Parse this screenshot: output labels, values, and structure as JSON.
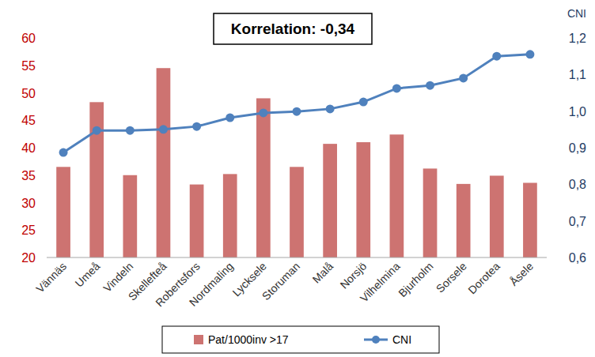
{
  "chart_data": {
    "type": "bar",
    "annotation": "Korrelation: -0,34",
    "y2label": "CNI",
    "categories": [
      "Vännäs",
      "Umeå",
      "Vindeln",
      "Skellefteå",
      "Robertsfors",
      "Nordmaling",
      "Lycksele",
      "Storuman",
      "Malå",
      "Norsjö",
      "Vilhelmina",
      "Bjurholm",
      "Sorsele",
      "Dorotea",
      "Åsele"
    ],
    "series": [
      {
        "name": "Pat/1000inv >17",
        "type": "bar",
        "color": "#cd7371",
        "axis": "y",
        "values": [
          36.5,
          48.3,
          35,
          54.5,
          33.3,
          35.2,
          49,
          36.5,
          40.7,
          41,
          42.4,
          36.2,
          33.4,
          34.9,
          33.6
        ]
      },
      {
        "name": "CNI",
        "type": "line",
        "color": "#4f81bd",
        "axis": "y2",
        "marker": "circle",
        "values": [
          0.887,
          0.947,
          0.947,
          0.95,
          0.958,
          0.982,
          0.995,
          0.999,
          1.006,
          1.025,
          1.062,
          1.07,
          1.09,
          1.15,
          1.155
        ]
      }
    ],
    "ylim": [
      20,
      60
    ],
    "yticks": [
      20,
      25,
      30,
      35,
      40,
      45,
      50,
      55,
      60
    ],
    "y2lim": [
      0.6,
      1.2
    ],
    "y2ticks": [
      {
        "value": 0.6,
        "label": "0,6"
      },
      {
        "value": 0.7,
        "label": "0,7"
      },
      {
        "value": 0.8,
        "label": "0,8"
      },
      {
        "value": 0.9,
        "label": "0,9"
      },
      {
        "value": 1.0,
        "label": "1,0"
      },
      {
        "value": 1.1,
        "label": "1,1"
      },
      {
        "value": 1.2,
        "label": "1,2"
      }
    ],
    "grid": false,
    "legend": "bottom"
  }
}
